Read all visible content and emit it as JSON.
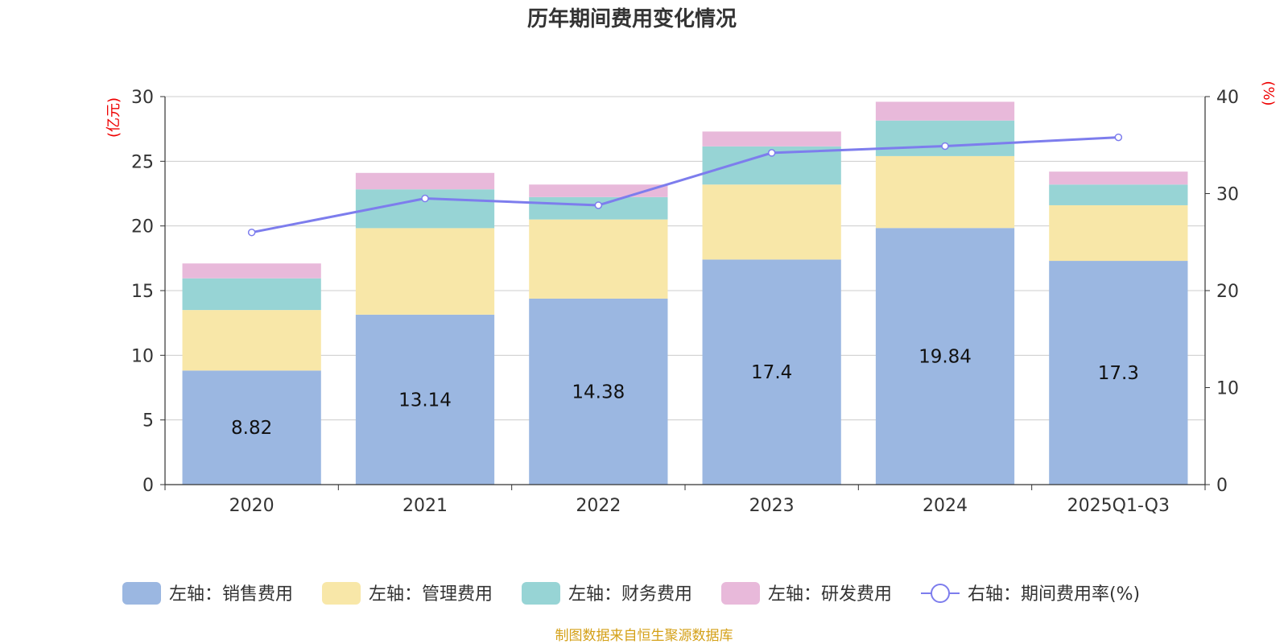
{
  "chart_data": {
    "type": "bar",
    "title": "历年期间费用变化情况",
    "categories": [
      "2020",
      "2021",
      "2022",
      "2023",
      "2024",
      "2025Q1-Q3"
    ],
    "left_axis_unit": "(亿元)",
    "right_axis_unit": "(%)",
    "left_ylim": [
      0,
      30
    ],
    "left_ticks": [
      0,
      5,
      10,
      15,
      20,
      25,
      30
    ],
    "right_ylim": [
      0,
      40
    ],
    "right_ticks": [
      0,
      10,
      20,
      30,
      40
    ],
    "grid": true,
    "series": [
      {
        "name": "左轴：销售费用",
        "type": "bar",
        "color": "#9bb7e1",
        "values": [
          8.82,
          13.14,
          14.38,
          17.4,
          19.84,
          17.3
        ],
        "labels": [
          "8.82",
          "13.14",
          "14.38",
          "17.4",
          "19.84",
          "17.3"
        ]
      },
      {
        "name": "左轴：管理费用",
        "type": "bar",
        "color": "#f8e7a8",
        "values": [
          4.68,
          6.69,
          6.12,
          5.8,
          5.56,
          4.3
        ]
      },
      {
        "name": "左轴：财务费用",
        "type": "bar",
        "color": "#97d4d5",
        "values": [
          2.45,
          3.0,
          1.73,
          2.95,
          2.75,
          1.6
        ]
      },
      {
        "name": "左轴：研发费用",
        "type": "bar",
        "color": "#e8b9da",
        "values": [
          1.15,
          1.27,
          0.97,
          1.15,
          1.45,
          1.0
        ]
      },
      {
        "name": "右轴：期间费用率(%)",
        "type": "line",
        "axis": "right",
        "color": "#7d7ded",
        "values": [
          26.0,
          29.5,
          28.8,
          34.2,
          34.9,
          35.8
        ]
      }
    ],
    "legend_position": "bottom",
    "source": "制图数据来自恒生聚源数据库"
  }
}
